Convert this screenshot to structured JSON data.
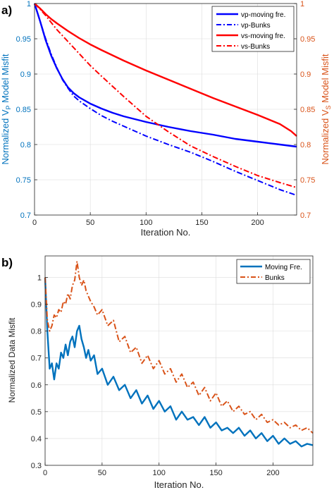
{
  "chart_data": [
    {
      "panel_label": "a)",
      "type": "line",
      "xlabel": "Iteration No.",
      "ylabel_left": {
        "base": "Normalized V",
        "sub": "P",
        "rest": " Model Misfit"
      },
      "ylabel_right": {
        "base": "Normalized V",
        "sub": "S",
        "rest": " Model Misfit"
      },
      "xlim": [
        0,
        235
      ],
      "ylim": [
        0.7,
        1.0
      ],
      "ylim_right": [
        0.7,
        1.0
      ],
      "xticks": [
        0,
        50,
        100,
        150,
        200
      ],
      "yticks": [
        0.7,
        0.75,
        0.8,
        0.85,
        0.9,
        0.95,
        1
      ],
      "yticks_right": [
        0.7,
        0.75,
        0.8,
        0.85,
        0.9,
        0.95,
        1
      ],
      "grid": true,
      "legend_position": "top-right",
      "colors": {
        "left_axis": "#0072BD",
        "right_axis": "#D95319",
        "blue": "#0000FF",
        "red": "#FF0000"
      },
      "series": [
        {
          "name": "vp-moving fre.",
          "color": "#0000FF",
          "style": "solid",
          "x": [
            0,
            5,
            10,
            15,
            20,
            25,
            30,
            35,
            40,
            50,
            60,
            70,
            80,
            100,
            120,
            140,
            160,
            180,
            200,
            220,
            235
          ],
          "y": [
            1.0,
            0.975,
            0.948,
            0.926,
            0.908,
            0.893,
            0.881,
            0.873,
            0.867,
            0.858,
            0.851,
            0.845,
            0.84,
            0.832,
            0.825,
            0.819,
            0.814,
            0.808,
            0.804,
            0.8,
            0.797
          ]
        },
        {
          "name": "vp-Bunks",
          "color": "#0000FF",
          "style": "dashdot",
          "x": [
            0,
            5,
            10,
            15,
            20,
            25,
            30,
            35,
            40,
            50,
            60,
            70,
            80,
            100,
            120,
            140,
            160,
            180,
            200,
            220,
            235
          ],
          "y": [
            1.0,
            0.975,
            0.95,
            0.928,
            0.909,
            0.892,
            0.88,
            0.869,
            0.862,
            0.851,
            0.841,
            0.833,
            0.826,
            0.812,
            0.8,
            0.789,
            0.776,
            0.762,
            0.749,
            0.736,
            0.728
          ]
        },
        {
          "name": "vs-moving fre.",
          "color": "#FF0000",
          "style": "solid",
          "x": [
            0,
            5,
            10,
            15,
            20,
            30,
            40,
            50,
            60,
            80,
            100,
            120,
            140,
            160,
            180,
            200,
            220,
            230,
            235
          ],
          "y": [
            1.0,
            0.993,
            0.985,
            0.978,
            0.972,
            0.961,
            0.951,
            0.942,
            0.934,
            0.919,
            0.905,
            0.892,
            0.879,
            0.866,
            0.854,
            0.842,
            0.829,
            0.819,
            0.812
          ]
        },
        {
          "name": "vs-Bunks",
          "color": "#FF0000",
          "style": "dashdot",
          "x": [
            0,
            5,
            10,
            15,
            20,
            30,
            40,
            50,
            60,
            80,
            100,
            120,
            140,
            160,
            180,
            200,
            220,
            235
          ],
          "y": [
            1.0,
            0.992,
            0.983,
            0.973,
            0.963,
            0.946,
            0.929,
            0.912,
            0.897,
            0.868,
            0.84,
            0.818,
            0.798,
            0.783,
            0.769,
            0.756,
            0.746,
            0.739
          ]
        }
      ]
    },
    {
      "panel_label": "b)",
      "type": "line",
      "xlabel": "Iteration No.",
      "ylabel": "Normalized Data Misfit",
      "xlim": [
        0,
        235
      ],
      "ylim": [
        0.3,
        1.08
      ],
      "xticks": [
        0,
        50,
        100,
        150,
        200
      ],
      "yticks": [
        0.3,
        0.4,
        0.5,
        0.6,
        0.7,
        0.8,
        0.9,
        1
      ],
      "grid": true,
      "legend_position": "top-right",
      "colors": {
        "moving": "#0072BD",
        "bunks": "#D95319"
      },
      "series": [
        {
          "name": "Moving Fre.",
          "color": "#0072BD",
          "style": "solid",
          "x": [
            0,
            2,
            4,
            6,
            8,
            10,
            12,
            14,
            16,
            18,
            20,
            22,
            24,
            26,
            28,
            30,
            32,
            34,
            36,
            38,
            40,
            43,
            46,
            50,
            55,
            60,
            65,
            70,
            75,
            80,
            85,
            90,
            95,
            100,
            105,
            110,
            115,
            120,
            125,
            130,
            135,
            140,
            145,
            150,
            155,
            160,
            165,
            170,
            175,
            180,
            185,
            190,
            195,
            200,
            205,
            210,
            215,
            220,
            225,
            230,
            235
          ],
          "y": [
            1.0,
            0.8,
            0.66,
            0.68,
            0.62,
            0.68,
            0.66,
            0.72,
            0.7,
            0.75,
            0.71,
            0.76,
            0.78,
            0.74,
            0.8,
            0.82,
            0.77,
            0.74,
            0.7,
            0.73,
            0.69,
            0.71,
            0.64,
            0.66,
            0.6,
            0.63,
            0.58,
            0.6,
            0.55,
            0.58,
            0.53,
            0.56,
            0.51,
            0.54,
            0.5,
            0.52,
            0.47,
            0.5,
            0.47,
            0.48,
            0.45,
            0.48,
            0.44,
            0.46,
            0.43,
            0.44,
            0.42,
            0.44,
            0.41,
            0.43,
            0.4,
            0.42,
            0.39,
            0.41,
            0.38,
            0.4,
            0.38,
            0.39,
            0.37,
            0.38,
            0.375
          ]
        },
        {
          "name": "Bunks",
          "color": "#D95319",
          "style": "dashdot",
          "x": [
            0,
            2,
            4,
            6,
            8,
            10,
            12,
            14,
            16,
            18,
            20,
            22,
            24,
            26,
            28,
            30,
            32,
            34,
            36,
            38,
            40,
            43,
            46,
            50,
            55,
            60,
            65,
            70,
            75,
            80,
            85,
            90,
            95,
            100,
            105,
            110,
            115,
            120,
            125,
            130,
            135,
            140,
            145,
            150,
            155,
            160,
            165,
            170,
            175,
            180,
            185,
            190,
            195,
            200,
            205,
            210,
            215,
            220,
            225,
            230,
            235
          ],
          "y": [
            1.0,
            0.84,
            0.8,
            0.82,
            0.86,
            0.85,
            0.88,
            0.87,
            0.91,
            0.9,
            0.94,
            0.92,
            0.97,
            0.99,
            1.06,
            1.0,
            0.97,
            0.99,
            0.95,
            0.93,
            0.91,
            0.89,
            0.86,
            0.88,
            0.82,
            0.84,
            0.76,
            0.78,
            0.72,
            0.74,
            0.68,
            0.71,
            0.66,
            0.69,
            0.64,
            0.66,
            0.61,
            0.64,
            0.59,
            0.61,
            0.56,
            0.59,
            0.54,
            0.57,
            0.52,
            0.54,
            0.5,
            0.52,
            0.49,
            0.5,
            0.47,
            0.49,
            0.46,
            0.47,
            0.45,
            0.46,
            0.44,
            0.45,
            0.43,
            0.44,
            0.42
          ]
        }
      ]
    }
  ]
}
